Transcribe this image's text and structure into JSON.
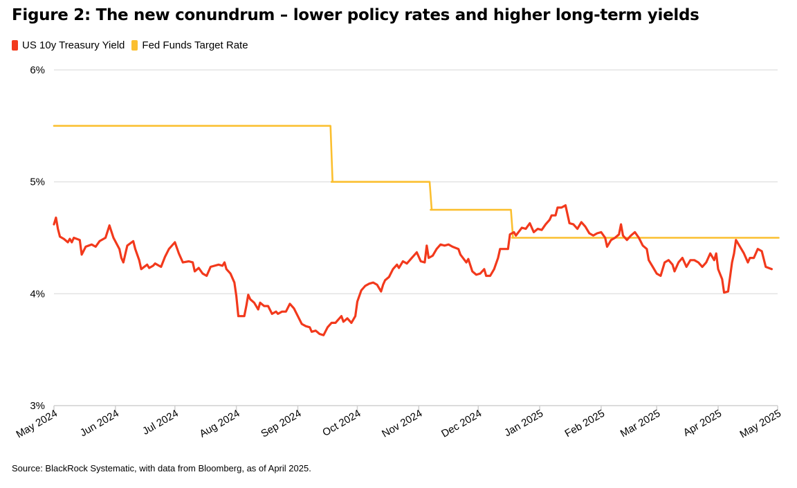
{
  "chart_data": {
    "type": "line",
    "title": "Figure 2: The new conundrum – lower policy rates and higher long-term yields",
    "source": "Source: BlackRock Systematic, with data from Bloomberg, as of April 2025.",
    "ylim": [
      3,
      6
    ],
    "yticks": [
      {
        "value": 3,
        "label": "3%"
      },
      {
        "value": 4,
        "label": "4%"
      },
      {
        "value": 5,
        "label": "5%"
      },
      {
        "value": 6,
        "label": "6%"
      }
    ],
    "xlim": [
      "2024-05-01",
      "2025-05-01"
    ],
    "xticks": [
      {
        "date": "2024-05-01",
        "label": "May 2024"
      },
      {
        "date": "2024-06-01",
        "label": "Jun 2024"
      },
      {
        "date": "2024-07-01",
        "label": "Jul 2024"
      },
      {
        "date": "2024-08-01",
        "label": "Aug 2024"
      },
      {
        "date": "2024-09-01",
        "label": "Sep 2024"
      },
      {
        "date": "2024-10-01",
        "label": "Oct 2024"
      },
      {
        "date": "2024-11-01",
        "label": "Nov 2024"
      },
      {
        "date": "2024-12-01",
        "label": "Dec 2024"
      },
      {
        "date": "2025-01-01",
        "label": "Jan 2025"
      },
      {
        "date": "2025-02-01",
        "label": "Feb 2025"
      },
      {
        "date": "2025-03-01",
        "label": "Mar 2025"
      },
      {
        "date": "2025-04-01",
        "label": "Apr 2025"
      },
      {
        "date": "2025-05-01",
        "label": "May 2025"
      }
    ],
    "grid": true,
    "legend_position": "top-left",
    "series": [
      {
        "name": "US 10y Treasury Yield",
        "color": "#f2391c",
        "step": false,
        "points": [
          [
            "2024-05-01",
            4.62
          ],
          [
            "2024-05-02",
            4.68
          ],
          [
            "2024-05-03",
            4.58
          ],
          [
            "2024-05-04",
            4.51
          ],
          [
            "2024-05-06",
            4.49
          ],
          [
            "2024-05-08",
            4.46
          ],
          [
            "2024-05-09",
            4.49
          ],
          [
            "2024-05-10",
            4.46
          ],
          [
            "2024-05-11",
            4.5
          ],
          [
            "2024-05-14",
            4.48
          ],
          [
            "2024-05-15",
            4.35
          ],
          [
            "2024-05-17",
            4.42
          ],
          [
            "2024-05-20",
            4.44
          ],
          [
            "2024-05-22",
            4.42
          ],
          [
            "2024-05-24",
            4.47
          ],
          [
            "2024-05-27",
            4.5
          ],
          [
            "2024-05-29",
            4.61
          ],
          [
            "2024-05-31",
            4.5
          ],
          [
            "2024-06-03",
            4.4
          ],
          [
            "2024-06-04",
            4.32
          ],
          [
            "2024-06-05",
            4.28
          ],
          [
            "2024-06-07",
            4.43
          ],
          [
            "2024-06-10",
            4.47
          ],
          [
            "2024-06-11",
            4.4
          ],
          [
            "2024-06-13",
            4.3
          ],
          [
            "2024-06-14",
            4.22
          ],
          [
            "2024-06-17",
            4.26
          ],
          [
            "2024-06-18",
            4.23
          ],
          [
            "2024-06-20",
            4.25
          ],
          [
            "2024-06-21",
            4.27
          ],
          [
            "2024-06-24",
            4.24
          ],
          [
            "2024-06-26",
            4.33
          ],
          [
            "2024-06-28",
            4.4
          ],
          [
            "2024-07-01",
            4.46
          ],
          [
            "2024-07-03",
            4.36
          ],
          [
            "2024-07-05",
            4.28
          ],
          [
            "2024-07-08",
            4.29
          ],
          [
            "2024-07-10",
            4.28
          ],
          [
            "2024-07-11",
            4.2
          ],
          [
            "2024-07-13",
            4.23
          ],
          [
            "2024-07-15",
            4.18
          ],
          [
            "2024-07-17",
            4.16
          ],
          [
            "2024-07-19",
            4.24
          ],
          [
            "2024-07-23",
            4.26
          ],
          [
            "2024-07-25",
            4.25
          ],
          [
            "2024-07-26",
            4.28
          ],
          [
            "2024-07-27",
            4.22
          ],
          [
            "2024-07-29",
            4.18
          ],
          [
            "2024-07-31",
            4.1
          ],
          [
            "2024-08-01",
            3.98
          ],
          [
            "2024-08-02",
            3.8
          ],
          [
            "2024-08-05",
            3.8
          ],
          [
            "2024-08-06",
            3.89
          ],
          [
            "2024-08-07",
            3.99
          ],
          [
            "2024-08-08",
            3.95
          ],
          [
            "2024-08-10",
            3.92
          ],
          [
            "2024-08-12",
            3.86
          ],
          [
            "2024-08-13",
            3.92
          ],
          [
            "2024-08-15",
            3.89
          ],
          [
            "2024-08-17",
            3.89
          ],
          [
            "2024-08-19",
            3.82
          ],
          [
            "2024-08-21",
            3.84
          ],
          [
            "2024-08-22",
            3.82
          ],
          [
            "2024-08-24",
            3.84
          ],
          [
            "2024-08-26",
            3.84
          ],
          [
            "2024-08-28",
            3.91
          ],
          [
            "2024-08-30",
            3.87
          ],
          [
            "2024-09-01",
            3.8
          ],
          [
            "2024-09-03",
            3.73
          ],
          [
            "2024-09-05",
            3.71
          ],
          [
            "2024-09-07",
            3.7
          ],
          [
            "2024-09-08",
            3.66
          ],
          [
            "2024-09-10",
            3.67
          ],
          [
            "2024-09-12",
            3.64
          ],
          [
            "2024-09-14",
            3.63
          ],
          [
            "2024-09-16",
            3.7
          ],
          [
            "2024-09-18",
            3.74
          ],
          [
            "2024-09-20",
            3.74
          ],
          [
            "2024-09-21",
            3.76
          ],
          [
            "2024-09-23",
            3.8
          ],
          [
            "2024-09-24",
            3.75
          ],
          [
            "2024-09-26",
            3.78
          ],
          [
            "2024-09-28",
            3.74
          ],
          [
            "2024-09-30",
            3.8
          ],
          [
            "2024-10-01",
            3.93
          ],
          [
            "2024-10-03",
            4.03
          ],
          [
            "2024-10-05",
            4.07
          ],
          [
            "2024-10-07",
            4.09
          ],
          [
            "2024-10-09",
            4.1
          ],
          [
            "2024-10-11",
            4.08
          ],
          [
            "2024-10-13",
            4.02
          ],
          [
            "2024-10-14",
            4.08
          ],
          [
            "2024-10-15",
            4.12
          ],
          [
            "2024-10-17",
            4.15
          ],
          [
            "2024-10-19",
            4.22
          ],
          [
            "2024-10-21",
            4.26
          ],
          [
            "2024-10-22",
            4.23
          ],
          [
            "2024-10-24",
            4.29
          ],
          [
            "2024-10-26",
            4.27
          ],
          [
            "2024-10-28",
            4.31
          ],
          [
            "2024-10-31",
            4.37
          ],
          [
            "2024-11-02",
            4.29
          ],
          [
            "2024-11-04",
            4.28
          ],
          [
            "2024-11-05",
            4.43
          ],
          [
            "2024-11-06",
            4.32
          ],
          [
            "2024-11-08",
            4.34
          ],
          [
            "2024-11-10",
            4.4
          ],
          [
            "2024-11-12",
            4.44
          ],
          [
            "2024-11-14",
            4.43
          ],
          [
            "2024-11-16",
            4.44
          ],
          [
            "2024-11-18",
            4.42
          ],
          [
            "2024-11-21",
            4.4
          ],
          [
            "2024-11-22",
            4.35
          ],
          [
            "2024-11-25",
            4.28
          ],
          [
            "2024-11-26",
            4.31
          ],
          [
            "2024-11-28",
            4.2
          ],
          [
            "2024-11-30",
            4.17
          ],
          [
            "2024-12-02",
            4.18
          ],
          [
            "2024-12-04",
            4.22
          ],
          [
            "2024-12-05",
            4.16
          ],
          [
            "2024-12-07",
            4.16
          ],
          [
            "2024-12-09",
            4.22
          ],
          [
            "2024-12-11",
            4.32
          ],
          [
            "2024-12-12",
            4.4
          ],
          [
            "2024-12-16",
            4.4
          ],
          [
            "2024-12-17",
            4.53
          ],
          [
            "2024-12-19",
            4.55
          ],
          [
            "2024-12-20",
            4.52
          ],
          [
            "2024-12-23",
            4.59
          ],
          [
            "2024-12-25",
            4.58
          ],
          [
            "2024-12-27",
            4.63
          ],
          [
            "2024-12-29",
            4.55
          ],
          [
            "2024-12-31",
            4.58
          ],
          [
            "2025-01-02",
            4.57
          ],
          [
            "2025-01-04",
            4.62
          ],
          [
            "2025-01-06",
            4.66
          ],
          [
            "2025-01-07",
            4.7
          ],
          [
            "2025-01-09",
            4.7
          ],
          [
            "2025-01-10",
            4.77
          ],
          [
            "2025-01-12",
            4.77
          ],
          [
            "2025-01-14",
            4.79
          ],
          [
            "2025-01-16",
            4.63
          ],
          [
            "2025-01-18",
            4.62
          ],
          [
            "2025-01-20",
            4.58
          ],
          [
            "2025-01-22",
            4.64
          ],
          [
            "2025-01-24",
            4.6
          ],
          [
            "2025-01-26",
            4.54
          ],
          [
            "2025-01-28",
            4.52
          ],
          [
            "2025-01-30",
            4.54
          ],
          [
            "2025-02-01",
            4.55
          ],
          [
            "2025-02-03",
            4.5
          ],
          [
            "2025-02-04",
            4.42
          ],
          [
            "2025-02-06",
            4.48
          ],
          [
            "2025-02-08",
            4.5
          ],
          [
            "2025-02-10",
            4.53
          ],
          [
            "2025-02-11",
            4.62
          ],
          [
            "2025-02-12",
            4.52
          ],
          [
            "2025-02-14",
            4.48
          ],
          [
            "2025-02-16",
            4.52
          ],
          [
            "2025-02-18",
            4.55
          ],
          [
            "2025-02-20",
            4.5
          ],
          [
            "2025-02-22",
            4.43
          ],
          [
            "2025-02-24",
            4.4
          ],
          [
            "2025-02-25",
            4.3
          ],
          [
            "2025-02-27",
            4.24
          ],
          [
            "2025-03-01",
            4.18
          ],
          [
            "2025-03-03",
            4.16
          ],
          [
            "2025-03-05",
            4.28
          ],
          [
            "2025-03-07",
            4.3
          ],
          [
            "2025-03-09",
            4.26
          ],
          [
            "2025-03-10",
            4.2
          ],
          [
            "2025-03-12",
            4.28
          ],
          [
            "2025-03-14",
            4.32
          ],
          [
            "2025-03-16",
            4.24
          ],
          [
            "2025-03-18",
            4.3
          ],
          [
            "2025-03-20",
            4.3
          ],
          [
            "2025-03-22",
            4.28
          ],
          [
            "2025-03-24",
            4.24
          ],
          [
            "2025-03-26",
            4.28
          ],
          [
            "2025-03-28",
            4.36
          ],
          [
            "2025-03-30",
            4.3
          ],
          [
            "2025-03-31",
            4.36
          ],
          [
            "2025-04-01",
            4.22
          ],
          [
            "2025-04-03",
            4.13
          ],
          [
            "2025-04-04",
            4.01
          ],
          [
            "2025-04-06",
            4.02
          ],
          [
            "2025-04-08",
            4.28
          ],
          [
            "2025-04-09",
            4.36
          ],
          [
            "2025-04-10",
            4.48
          ],
          [
            "2025-04-12",
            4.42
          ],
          [
            "2025-04-14",
            4.36
          ],
          [
            "2025-04-16",
            4.28
          ],
          [
            "2025-04-17",
            4.32
          ],
          [
            "2025-04-19",
            4.32
          ],
          [
            "2025-04-21",
            4.4
          ],
          [
            "2025-04-23",
            4.38
          ],
          [
            "2025-04-25",
            4.24
          ],
          [
            "2025-04-28",
            4.22
          ]
        ]
      },
      {
        "name": "Fed Funds Target Rate",
        "color": "#fbbf2f",
        "step": true,
        "points": [
          [
            "2024-05-01",
            5.5
          ],
          [
            "2024-09-18",
            5.0
          ],
          [
            "2024-11-07",
            4.75
          ],
          [
            "2024-12-18",
            4.5
          ],
          [
            "2025-05-01",
            4.5
          ]
        ]
      }
    ]
  }
}
